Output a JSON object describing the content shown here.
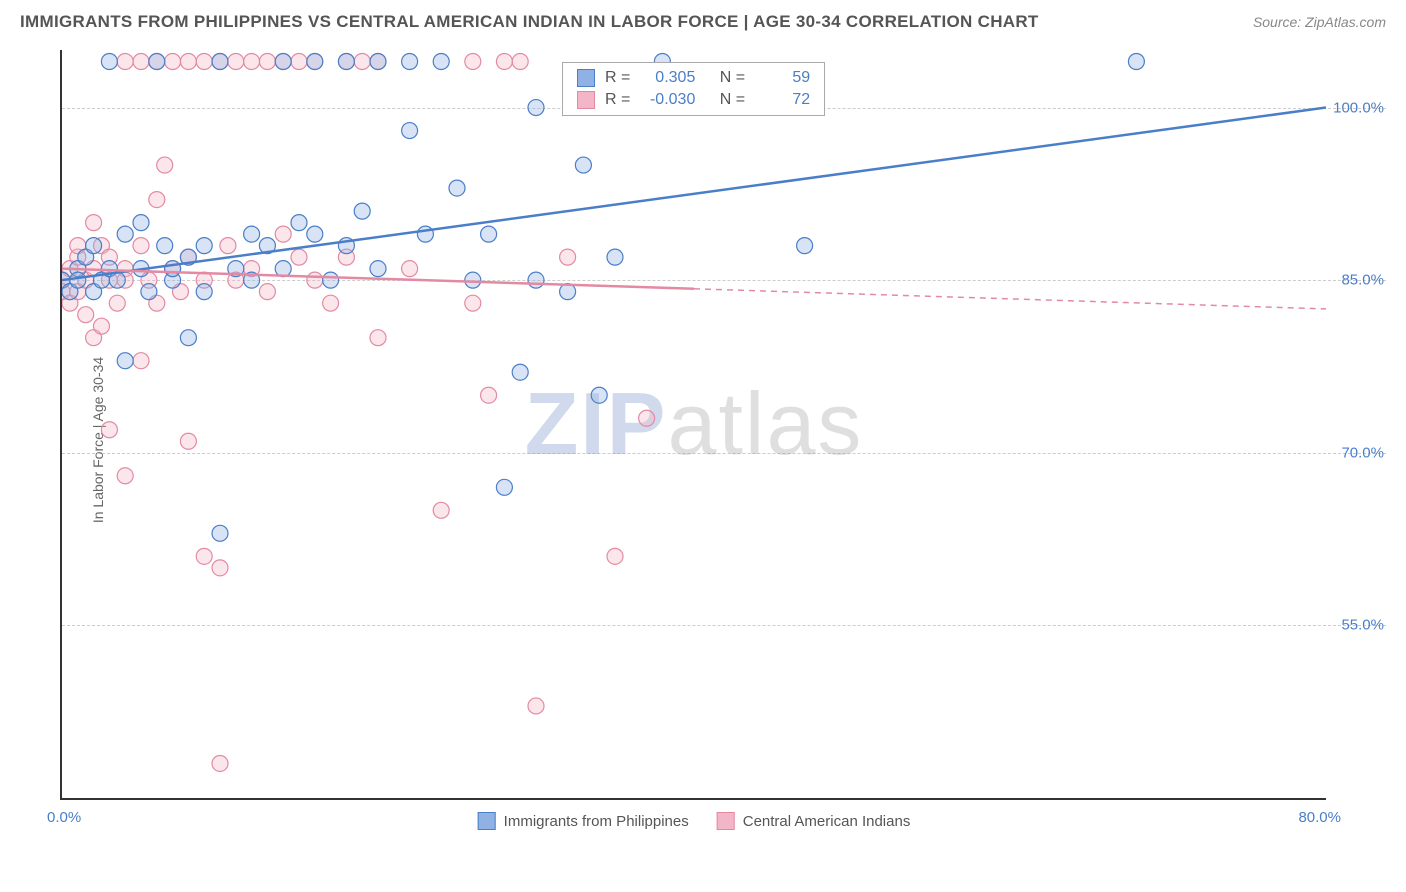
{
  "header": {
    "title": "IMMIGRANTS FROM PHILIPPINES VS CENTRAL AMERICAN INDIAN IN LABOR FORCE | AGE 30-34 CORRELATION CHART",
    "source_label": "Source: ZipAtlas.com"
  },
  "chart": {
    "type": "scatter",
    "y_axis_label": "In Labor Force | Age 30-34",
    "x_range": [
      0,
      80
    ],
    "y_range": [
      40,
      105
    ],
    "x_ticks": [
      {
        "value": 0,
        "label": "0.0%"
      },
      {
        "value": 80,
        "label": "80.0%"
      }
    ],
    "y_ticks": [
      {
        "value": 55,
        "label": "55.0%"
      },
      {
        "value": 70,
        "label": "70.0%"
      },
      {
        "value": 85,
        "label": "85.0%"
      },
      {
        "value": 100,
        "label": "100.0%"
      }
    ],
    "grid_color": "#cccccc",
    "background_color": "#ffffff",
    "marker_radius": 8,
    "series": [
      {
        "name": "Immigrants from Philippines",
        "fill": "#8fb1e3",
        "stroke": "#4a7ec9",
        "r_value": "0.305",
        "n_value": "59",
        "regression": {
          "x1": 0,
          "y1": 85,
          "x2": 80,
          "y2": 100,
          "dash_after_x": null
        },
        "points": [
          [
            0,
            85
          ],
          [
            0.5,
            84
          ],
          [
            1,
            86
          ],
          [
            1,
            85
          ],
          [
            1.5,
            87
          ],
          [
            2,
            84
          ],
          [
            2,
            88
          ],
          [
            2.5,
            85
          ],
          [
            3,
            86
          ],
          [
            3,
            104
          ],
          [
            3.5,
            85
          ],
          [
            4,
            89
          ],
          [
            4,
            78
          ],
          [
            5,
            86
          ],
          [
            5,
            90
          ],
          [
            5.5,
            84
          ],
          [
            6,
            104
          ],
          [
            6.5,
            88
          ],
          [
            7,
            85
          ],
          [
            7,
            86
          ],
          [
            8,
            80
          ],
          [
            8,
            87
          ],
          [
            9,
            84
          ],
          [
            9,
            88
          ],
          [
            10,
            104
          ],
          [
            10,
            63
          ],
          [
            11,
            86
          ],
          [
            12,
            85
          ],
          [
            12,
            89
          ],
          [
            13,
            88
          ],
          [
            14,
            104
          ],
          [
            14,
            86
          ],
          [
            15,
            90
          ],
          [
            16,
            104
          ],
          [
            16,
            89
          ],
          [
            17,
            85
          ],
          [
            18,
            104
          ],
          [
            18,
            88
          ],
          [
            19,
            91
          ],
          [
            20,
            104
          ],
          [
            20,
            86
          ],
          [
            22,
            104
          ],
          [
            22,
            98
          ],
          [
            23,
            89
          ],
          [
            24,
            104
          ],
          [
            25,
            93
          ],
          [
            26,
            85
          ],
          [
            27,
            89
          ],
          [
            28,
            67
          ],
          [
            29,
            77
          ],
          [
            30,
            100
          ],
          [
            30,
            85
          ],
          [
            32,
            84
          ],
          [
            33,
            95
          ],
          [
            34,
            75
          ],
          [
            35,
            87
          ],
          [
            38,
            104
          ],
          [
            47,
            88
          ],
          [
            68,
            104
          ]
        ]
      },
      {
        "name": "Central American Indians",
        "fill": "#f2b6c6",
        "stroke": "#e38aa3",
        "r_value": "-0.030",
        "n_value": "72",
        "regression": {
          "x1": 0,
          "y1": 86,
          "x2": 80,
          "y2": 82.5,
          "dash_after_x": 40
        },
        "points": [
          [
            0,
            85
          ],
          [
            0,
            84
          ],
          [
            0.5,
            86
          ],
          [
            0.5,
            83
          ],
          [
            1,
            87
          ],
          [
            1,
            84
          ],
          [
            1,
            88
          ],
          [
            1.5,
            85
          ],
          [
            1.5,
            82
          ],
          [
            2,
            86
          ],
          [
            2,
            80
          ],
          [
            2,
            90
          ],
          [
            2.5,
            88
          ],
          [
            2.5,
            81
          ],
          [
            3,
            85
          ],
          [
            3,
            72
          ],
          [
            3,
            87
          ],
          [
            3.5,
            83
          ],
          [
            4,
            104
          ],
          [
            4,
            86
          ],
          [
            4,
            68
          ],
          [
            4,
            85
          ],
          [
            5,
            104
          ],
          [
            5,
            88
          ],
          [
            5,
            78
          ],
          [
            5.5,
            85
          ],
          [
            6,
            104
          ],
          [
            6,
            83
          ],
          [
            6,
            92
          ],
          [
            6.5,
            95
          ],
          [
            7,
            86
          ],
          [
            7,
            104
          ],
          [
            7.5,
            84
          ],
          [
            8,
            87
          ],
          [
            8,
            104
          ],
          [
            8,
            71
          ],
          [
            9,
            104
          ],
          [
            9,
            61
          ],
          [
            9,
            85
          ],
          [
            10,
            104
          ],
          [
            10,
            60
          ],
          [
            10.5,
            88
          ],
          [
            11,
            104
          ],
          [
            11,
            85
          ],
          [
            12,
            104
          ],
          [
            12,
            86
          ],
          [
            13,
            104
          ],
          [
            13,
            84
          ],
          [
            14,
            89
          ],
          [
            14,
            104
          ],
          [
            15,
            104
          ],
          [
            15,
            87
          ],
          [
            16,
            104
          ],
          [
            16,
            85
          ],
          [
            17,
            83
          ],
          [
            18,
            104
          ],
          [
            18,
            87
          ],
          [
            19,
            104
          ],
          [
            20,
            104
          ],
          [
            20,
            80
          ],
          [
            22,
            86
          ],
          [
            24,
            65
          ],
          [
            26,
            104
          ],
          [
            26,
            83
          ],
          [
            27,
            75
          ],
          [
            28,
            104
          ],
          [
            29,
            104
          ],
          [
            30,
            48
          ],
          [
            32,
            87
          ],
          [
            35,
            61
          ],
          [
            37,
            73
          ],
          [
            10,
            43
          ]
        ]
      }
    ],
    "legend": {
      "stats_labels": {
        "r": "R =",
        "n": "N ="
      }
    },
    "watermark": {
      "part1": "ZIP",
      "part2": "atlas"
    }
  }
}
